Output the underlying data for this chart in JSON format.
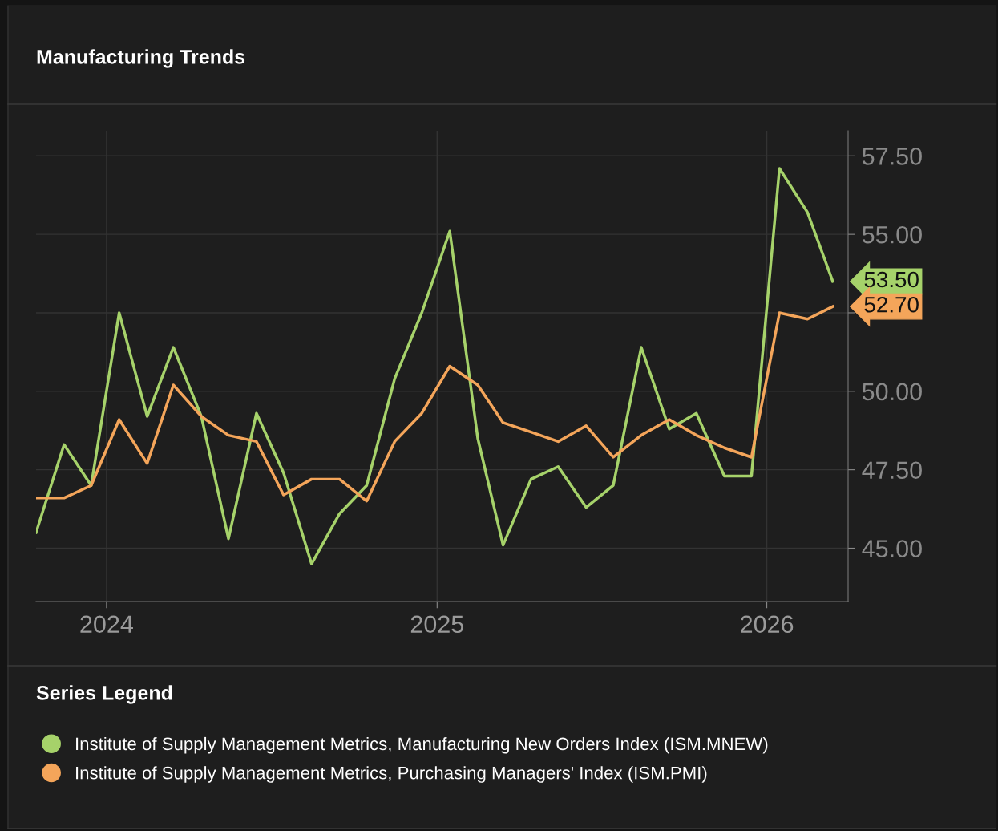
{
  "chart_data": {
    "type": "line",
    "title": "Manufacturing Trends",
    "legend_title": "Series Legend",
    "x": [
      "2023-10-15",
      "2023-11-15",
      "2023-12-15",
      "2024-01-15",
      "2024-02-15",
      "2024-03-15",
      "2024-04-15",
      "2024-05-15",
      "2024-06-15",
      "2024-07-15",
      "2024-08-15",
      "2024-09-15",
      "2024-10-15",
      "2024-11-15",
      "2024-12-15",
      "2025-01-15",
      "2025-02-15",
      "2025-03-15",
      "2025-04-15",
      "2025-05-15",
      "2025-06-15",
      "2025-07-15",
      "2025-08-15",
      "2025-09-15",
      "2025-10-15",
      "2025-11-15",
      "2025-12-15",
      "2026-01-15",
      "2026-02-15",
      "2026-03-15"
    ],
    "series": [
      {
        "name": "Institute of Supply Management Metrics, Manufacturing New Orders Index (ISM.MNEW)",
        "color": "#a6d26a",
        "values": [
          45.5,
          48.3,
          47.0,
          52.5,
          49.2,
          51.4,
          49.2,
          45.3,
          49.3,
          47.4,
          44.5,
          46.1,
          47.0,
          50.4,
          52.5,
          55.1,
          48.5,
          45.1,
          47.2,
          47.6,
          46.3,
          47.0,
          51.4,
          48.8,
          49.3,
          47.3,
          47.3,
          57.1,
          55.7,
          53.5
        ],
        "value_labels": [
          null,
          null,
          null,
          null,
          null,
          null,
          null,
          null,
          null,
          null,
          null,
          null,
          null,
          null,
          null,
          null,
          null,
          null,
          null,
          null,
          null,
          null,
          null,
          null,
          null,
          null,
          null,
          null,
          null,
          "53.50"
        ]
      },
      {
        "name": "Institute of Supply Management Metrics, Purchasing Managers' Index (ISM.PMI)",
        "color": "#f4a55a",
        "values": [
          46.6,
          46.6,
          47.0,
          49.1,
          47.7,
          50.2,
          49.2,
          48.6,
          48.4,
          46.7,
          47.2,
          47.2,
          46.5,
          48.4,
          49.3,
          50.8,
          50.2,
          49.0,
          48.7,
          48.4,
          48.9,
          47.9,
          48.6,
          49.1,
          48.6,
          48.2,
          47.9,
          52.5,
          52.3,
          52.7
        ],
        "value_labels": [
          null,
          null,
          null,
          null,
          null,
          null,
          null,
          null,
          null,
          null,
          null,
          null,
          null,
          null,
          null,
          null,
          null,
          null,
          null,
          null,
          null,
          null,
          null,
          null,
          null,
          null,
          null,
          null,
          null,
          "52.70"
        ]
      }
    ],
    "xlim": [
      "2023-10-15",
      "2026-04-01"
    ],
    "xticks": [
      {
        "value": "2024-01-01",
        "label": "2024"
      },
      {
        "value": "2025-01-01",
        "label": "2025"
      },
      {
        "value": "2026-01-01",
        "label": "2026"
      }
    ],
    "ylim": [
      43.3,
      58.3
    ],
    "yticks": [
      {
        "value": 45,
        "label": "45.00"
      },
      {
        "value": 47.5,
        "label": "47.50"
      },
      {
        "value": 50,
        "label": "50.00"
      },
      {
        "value": 52.5,
        "label": null
      },
      {
        "value": 55,
        "label": "55.00"
      },
      {
        "value": 57.5,
        "label": "57.50"
      }
    ],
    "grid": true,
    "legend": "bottom",
    "marker": "none",
    "line_style": "solid"
  }
}
